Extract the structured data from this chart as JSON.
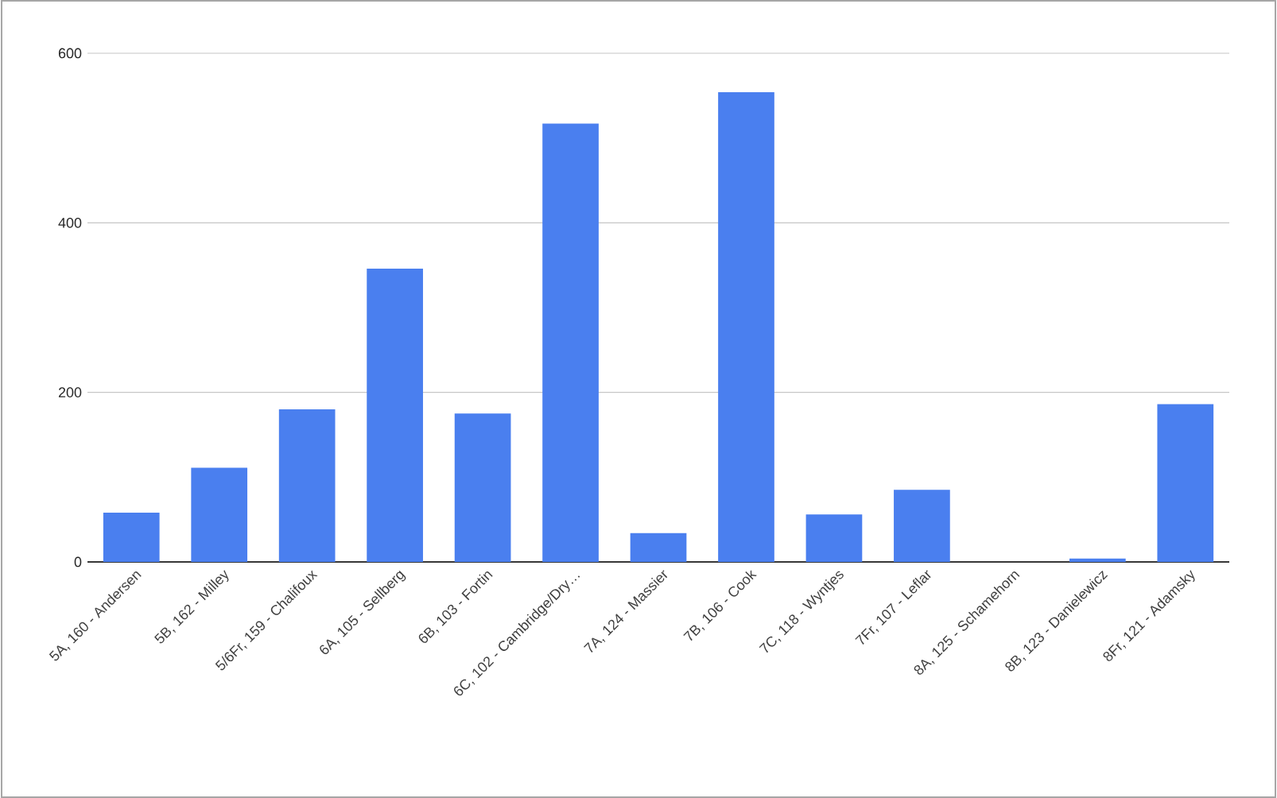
{
  "chart_data": {
    "type": "bar",
    "categories": [
      "5A, 160 - Andersen",
      "5B, 162 - Milley",
      "5/6Fr, 159 - Chalifoux",
      "6A, 105 - Sellberg",
      "6B, 103 - Fortin",
      "6C, 102 - Cambridge/Dry…",
      "7A, 124 - Massier",
      "7B, 106 - Cook",
      "7C, 118 - Wyntjes",
      "7Fr, 107 - Leflar",
      "8A, 125 - Schamehorn",
      "8B, 123 - Danielewicz",
      "8Fr, 121 - Adamsky"
    ],
    "values": [
      58,
      111,
      180,
      346,
      175,
      517,
      34,
      554,
      56,
      85,
      0,
      4,
      186
    ],
    "color": "#4a7fef",
    "ylim": [
      0,
      600
    ],
    "yticks": [
      0,
      200,
      400,
      600
    ],
    "grid": "y"
  }
}
